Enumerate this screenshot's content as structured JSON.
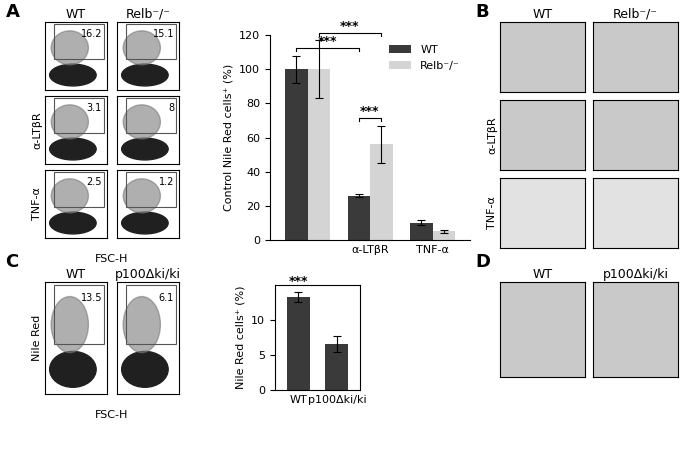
{
  "flow_plots": [
    {
      "panel_label": "A",
      "columns": [
        "WT",
        "Relb⁻/⁻"
      ],
      "rows": [
        null,
        "α-LTβR",
        "TNF-α"
      ],
      "gate_values": [
        [
          16.2,
          15.1
        ],
        [
          3.1,
          8
        ],
        [
          2.5,
          1.2
        ]
      ],
      "xlabel": "FSC-H",
      "tick_labels": false
    },
    {
      "panel_label": "C",
      "columns": [
        "WT",
        "p100Δki/ki"
      ],
      "rows": [
        "Nile Red"
      ],
      "gate_values": [
        [
          13.5,
          6.1
        ]
      ],
      "xlabel": "FSC-H",
      "tick_labels": false
    }
  ],
  "micrographs": [
    {
      "panel_label": "B",
      "columns": [
        "WT",
        "Relb⁻/⁻"
      ],
      "rows": [
        null,
        "α-LTβR",
        "TNF-α"
      ]
    },
    {
      "panel_label": "D",
      "columns": [
        "WT",
        "p100Δki/ki"
      ],
      "rows": [
        null
      ]
    }
  ],
  "chart_data": [
    {
      "type": "bar",
      "ylabel": "Control Nile Red cells⁺ (%)",
      "categories": [
        null,
        "α-LTβR",
        "TNF-α"
      ],
      "series": [
        {
          "name": "WT",
          "color": "#3a3a3a",
          "values": [
            100,
            26,
            10
          ],
          "errors": [
            8,
            1,
            1.5
          ]
        },
        {
          "name": "Relb⁻/⁻",
          "color": "#d4d4d4",
          "values": [
            100,
            56,
            5
          ],
          "errors": [
            17,
            11,
            1
          ]
        }
      ],
      "ylim": [
        0,
        120
      ],
      "yticks": [
        0,
        20,
        40,
        60,
        80,
        100,
        120
      ],
      "legend": "upper right",
      "significance": [
        {
          "label": "***",
          "from": [
            0,
            0
          ],
          "to": [
            1,
            0
          ]
        },
        {
          "label": "***",
          "from": [
            0,
            1
          ],
          "to": [
            1,
            1
          ]
        },
        {
          "label": "***",
          "from": [
            1,
            0
          ],
          "to": [
            1,
            1
          ]
        }
      ]
    },
    {
      "type": "bar",
      "ylabel": "Nile Red cells⁺ (%)",
      "categories": [
        "WT",
        "p100Δki/ki"
      ],
      "values": [
        13.3,
        6.6
      ],
      "errors": [
        0.7,
        1.1
      ],
      "color": "#3a3a3a",
      "ylim": [
        0,
        15
      ],
      "yticks": [
        0,
        5,
        10
      ],
      "significance": [
        {
          "label": "***",
          "from": [
            0,
            0
          ],
          "to": [
            0,
            0
          ]
        }
      ]
    }
  ]
}
